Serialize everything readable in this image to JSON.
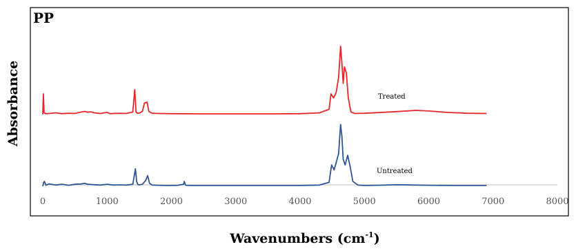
{
  "chart_data": {
    "type": "line",
    "title": "PP",
    "xlabel": "Wavenumbers (cm",
    "xlabel_sup": "-1",
    "xlabel_tail": ")",
    "ylabel": "Absorbance",
    "xlim": [
      0,
      8000
    ],
    "xticks": [
      "0",
      "1000",
      "2000",
      "3000",
      "4000",
      "5000",
      "6000",
      "7000",
      "8000"
    ],
    "xtick_values": [
      0,
      1000,
      2000,
      3000,
      4000,
      5000,
      6000,
      7000,
      8000
    ],
    "grid": false,
    "legend": "none",
    "series": [
      {
        "name": "Treated",
        "color": "#e8262a",
        "x": [
          0,
          10,
          20,
          40,
          100,
          200,
          300,
          400,
          500,
          560,
          600,
          650,
          700,
          750,
          800,
          900,
          1000,
          1050,
          1100,
          1200,
          1300,
          1400,
          1430,
          1450,
          1470,
          1500,
          1550,
          1580,
          1620,
          1650,
          1700,
          1800,
          2000,
          2500,
          3000,
          3500,
          4000,
          4300,
          4450,
          4480,
          4520,
          4560,
          4600,
          4630,
          4650,
          4670,
          4690,
          4720,
          4750,
          4790,
          4850,
          5000,
          5200,
          5500,
          5800,
          6000,
          6300,
          6600,
          6900
        ],
        "y": [
          0.0,
          1.0,
          0.1,
          0.04,
          0.05,
          0.08,
          0.04,
          0.06,
          0.05,
          0.09,
          0.12,
          0.15,
          0.11,
          0.13,
          0.08,
          0.05,
          0.1,
          0.04,
          0.05,
          0.06,
          0.05,
          0.12,
          1.2,
          0.12,
          0.06,
          0.07,
          0.15,
          0.55,
          0.6,
          0.14,
          0.06,
          0.05,
          0.04,
          0.03,
          0.03,
          0.03,
          0.04,
          0.08,
          0.25,
          1.0,
          0.8,
          1.05,
          1.8,
          3.3,
          2.5,
          1.5,
          2.3,
          2.0,
          0.8,
          0.12,
          0.05,
          0.06,
          0.09,
          0.14,
          0.2,
          0.17,
          0.1,
          0.06,
          0.05
        ]
      },
      {
        "name": "Untreated",
        "color": "#2f5597",
        "x": [
          0,
          10,
          25,
          50,
          100,
          200,
          300,
          400,
          500,
          600,
          650,
          700,
          800,
          900,
          1000,
          1100,
          1200,
          1300,
          1400,
          1440,
          1460,
          1480,
          1500,
          1550,
          1600,
          1630,
          1660,
          1700,
          1800,
          1900,
          2000,
          2100,
          2190,
          2200,
          2220,
          2300,
          2500,
          3000,
          3500,
          4000,
          4300,
          4450,
          4490,
          4530,
          4560,
          4600,
          4630,
          4650,
          4670,
          4700,
          4740,
          4780,
          4820,
          4900,
          5000,
          5200,
          5500,
          5800,
          6000,
          6400,
          6900
        ],
        "y": [
          0.0,
          0.15,
          0.25,
          0.05,
          0.12,
          0.06,
          0.1,
          0.05,
          0.1,
          0.12,
          0.15,
          0.1,
          0.08,
          0.06,
          0.1,
          0.06,
          0.07,
          0.06,
          0.1,
          0.9,
          0.25,
          0.08,
          0.07,
          0.1,
          0.3,
          0.55,
          0.15,
          0.06,
          0.05,
          0.04,
          0.04,
          0.05,
          0.1,
          0.25,
          0.05,
          0.04,
          0.04,
          0.04,
          0.04,
          0.04,
          0.06,
          0.2,
          1.1,
          0.85,
          1.2,
          1.7,
          3.2,
          2.6,
          1.4,
          1.1,
          1.6,
          1.0,
          0.25,
          0.06,
          0.04,
          0.05,
          0.08,
          0.06,
          0.05,
          0.04,
          0.04
        ]
      }
    ],
    "annotations": [
      "Treated",
      "Untreated"
    ]
  }
}
